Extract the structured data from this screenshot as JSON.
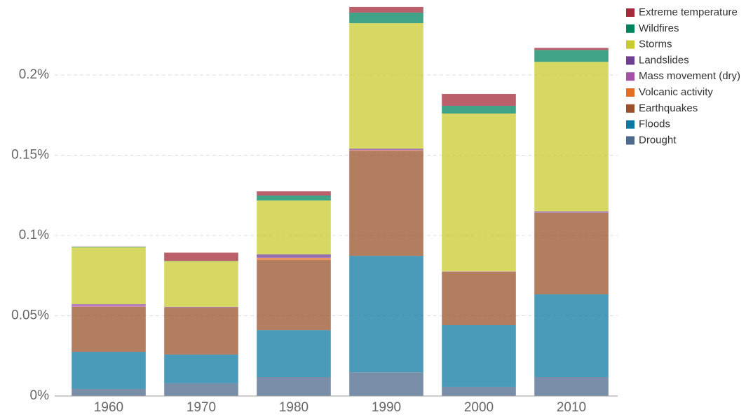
{
  "chart_data": {
    "type": "stacked_bar",
    "categories": [
      "1960",
      "1970",
      "1980",
      "1990",
      "2000",
      "2010"
    ],
    "series": [
      {
        "name": "Drought",
        "color": "#4c6a8c",
        "values": [
          0.0044,
          0.0079,
          0.0118,
          0.0148,
          0.0057,
          0.0118
        ]
      },
      {
        "name": "Floods",
        "color": "#0e78a3",
        "values": [
          0.0231,
          0.0179,
          0.0292,
          0.0725,
          0.0384,
          0.0515
        ]
      },
      {
        "name": "Earthquakes",
        "color": "#9a5129",
        "values": [
          0.028,
          0.0292,
          0.0437,
          0.0655,
          0.0332,
          0.0507
        ]
      },
      {
        "name": "Volcanic activity",
        "color": "#e56e27",
        "values": [
          0.0001,
          0.0001,
          0.0013,
          0.0003,
          0.0001,
          0.0001
        ]
      },
      {
        "name": "Mass movement (dry)",
        "color": "#a551a6",
        "values": [
          0.0013,
          0.0001,
          0.0003,
          0.0003,
          0.0001,
          0.0002
        ]
      },
      {
        "name": "Landslides",
        "color": "#6d3e91",
        "values": [
          0.0003,
          0.0003,
          0.0019,
          0.0007,
          0.0001,
          0.0007
        ]
      },
      {
        "name": "Storms",
        "color": "#c9c930",
        "values": [
          0.0355,
          0.0285,
          0.0336,
          0.0782,
          0.0984,
          0.0932
        ]
      },
      {
        "name": "Wildfires",
        "color": "#00845f",
        "values": [
          0.0003,
          0.0002,
          0.0031,
          0.0066,
          0.0048,
          0.0074
        ]
      },
      {
        "name": "Extreme temperature",
        "color": "#a42a39",
        "values": [
          0.0001,
          0.0051,
          0.0026,
          0.0035,
          0.0074,
          0.0013
        ]
      }
    ],
    "ylim": [
      0,
      0.245
    ],
    "yticks": [
      {
        "value": 0,
        "label": "0%"
      },
      {
        "value": 0.05,
        "label": "0.05%"
      },
      {
        "value": 0.1,
        "label": "0.1%"
      },
      {
        "value": 0.15,
        "label": "0.15%"
      },
      {
        "value": 0.2,
        "label": "0.2%"
      }
    ],
    "grid": true
  }
}
